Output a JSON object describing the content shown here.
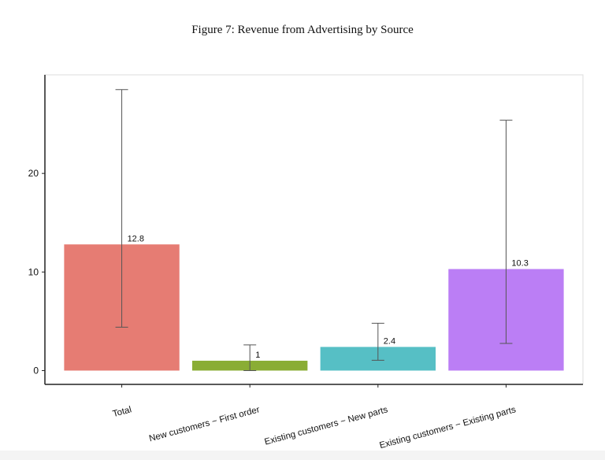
{
  "chart_data": {
    "type": "bar",
    "title": "Figure 7: Revenue from Advertising by Source",
    "xlabel": "",
    "ylabel": "",
    "categories": [
      "Total",
      "New customers − First order",
      "Existing customers − New parts",
      "Existing customers − Existing parts"
    ],
    "values": [
      12.8,
      1,
      2.4,
      10.3
    ],
    "data_labels": [
      "12.8",
      "1",
      "2.4",
      "10.3"
    ],
    "error_bars": [
      {
        "low": 4.4,
        "high": 28.5
      },
      {
        "low": 0,
        "high": 2.6
      },
      {
        "low": 1.05,
        "high": 4.8
      },
      {
        "low": 2.75,
        "high": 25.4
      }
    ],
    "colors": [
      "#e67c73",
      "#8aad35",
      "#56bfc5",
      "#bb7ef5"
    ],
    "ylim": [
      -1.4,
      30
    ],
    "yticks": [
      0,
      10,
      20
    ],
    "grid": false,
    "legend": "none"
  }
}
